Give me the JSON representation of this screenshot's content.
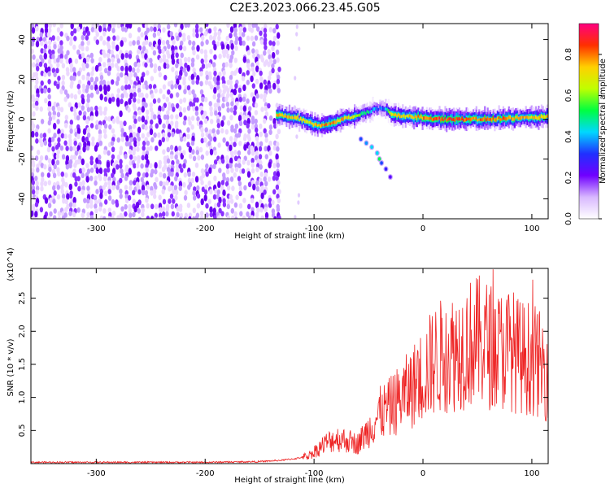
{
  "title": "C2E3.2023.066.23.45.G05",
  "chart_data": [
    {
      "type": "heatmap",
      "xlabel": "Height of straight line (km)",
      "ylabel": "Frequency (Hz)",
      "xlim": [
        -360,
        115
      ],
      "ylim": [
        -50,
        48
      ],
      "xticks": [
        -300,
        -200,
        -100,
        0,
        100
      ],
      "yticks": [
        -40,
        -20,
        0,
        20,
        40
      ],
      "colorbar": {
        "label": "Normalized spectral amplitude",
        "range": [
          0.0,
          0.95
        ],
        "ticks": [
          0.0,
          0.2,
          0.4,
          0.6,
          0.8
        ],
        "colors": [
          "#ffffff",
          "#d8b8ff",
          "#7000ff",
          "#2030ff",
          "#00d8ff",
          "#00ff40",
          "#c0ff00",
          "#ffd000",
          "#ff3000",
          "#ff0080"
        ]
      },
      "noise_region_x": [
        -360,
        -133
      ],
      "signal_trace": {
        "x": [
          -135,
          -125,
          -115,
          -105,
          -95,
          -85,
          -75,
          -65,
          -55,
          -45,
          -40,
          -35,
          -30,
          -25,
          -15,
          -5,
          5,
          15,
          30,
          45,
          60,
          75,
          90,
          105,
          115
        ],
        "y": [
          2,
          1.5,
          0.5,
          -2,
          -3,
          -2,
          0,
          1,
          3,
          5,
          5.5,
          5,
          3,
          2,
          1.5,
          1,
          0.5,
          0,
          0,
          0,
          0,
          0.5,
          0.5,
          1,
          1
        ],
        "amplitude": [
          0.85,
          0.85,
          0.8,
          0.8,
          0.85,
          0.9,
          0.85,
          0.75,
          0.6,
          0.45,
          0.4,
          0.5,
          0.75,
          0.85,
          0.8,
          0.9,
          0.9,
          0.95,
          0.95,
          0.9,
          0.9,
          0.9,
          0.85,
          0.85,
          0.8
        ]
      },
      "secondary_trace": {
        "x": [
          -57,
          -52,
          -47,
          -42,
          -40,
          -38,
          -34,
          -30
        ],
        "y": [
          -10,
          -12,
          -14,
          -17,
          -20,
          -22,
          -25,
          -29
        ],
        "amplitude": [
          0.35,
          0.4,
          0.45,
          0.45,
          0.55,
          0.35,
          0.3,
          0.25
        ]
      }
    },
    {
      "type": "line",
      "xlabel": "Height of straight line (km)",
      "ylabel": "SNR (10 * v/v)",
      "y_multiplier": "(x10^4)",
      "xlim": [
        -360,
        115
      ],
      "ylim": [
        0,
        2.95
      ],
      "xticks": [
        -300,
        -200,
        -100,
        0,
        100
      ],
      "yticks": [
        0.5,
        1.0,
        1.5,
        2.0,
        2.5
      ],
      "series": [
        {
          "color": "#ee2222",
          "x": [
            -360,
            -300,
            -200,
            -150,
            -130,
            -115,
            -105,
            -100,
            -90,
            -80,
            -70,
            -60,
            -50,
            -40,
            -30,
            -20,
            -10,
            0,
            10,
            20,
            30,
            40,
            50,
            60,
            70,
            80,
            90,
            100,
            110,
            115
          ],
          "y": [
            0.02,
            0.02,
            0.02,
            0.03,
            0.05,
            0.08,
            0.12,
            0.18,
            0.3,
            0.38,
            0.35,
            0.3,
            0.5,
            0.75,
            0.85,
            1.0,
            1.15,
            1.35,
            1.55,
            1.65,
            1.7,
            1.8,
            1.85,
            1.8,
            1.7,
            1.75,
            1.6,
            1.6,
            1.45,
            1.4
          ]
        }
      ]
    }
  ]
}
